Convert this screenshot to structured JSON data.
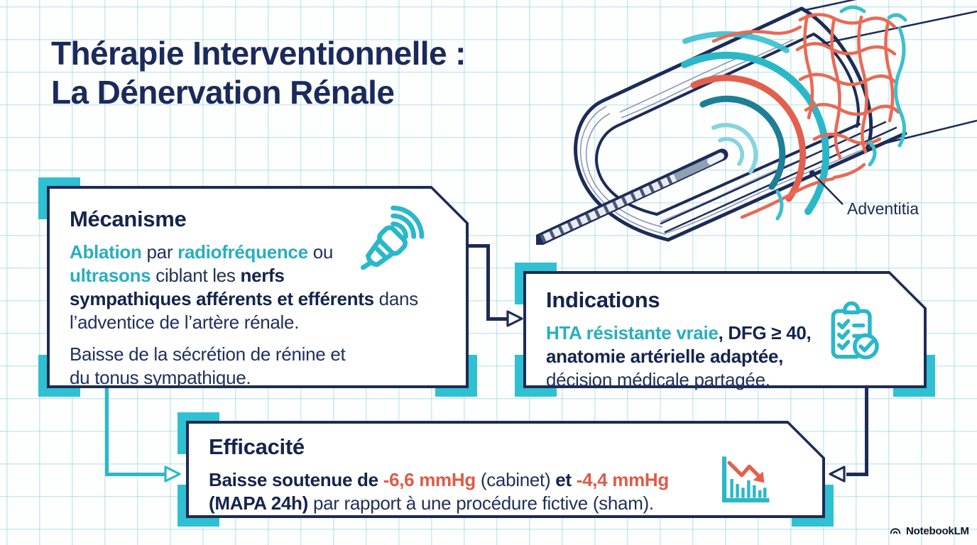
{
  "page": {
    "title_line1": "Thérapie Interventionnelle :",
    "title_line2": "La Dénervation Rénale",
    "brand": "NotebookLM"
  },
  "colors": {
    "navy": "#1d2b56",
    "navy_text": "#15244d",
    "teal": "#2ab8c9",
    "teal_text": "#29aebf",
    "coral": "#e05a47",
    "grid": "#5ec1d5",
    "dark_teal_wave": "#1e7e95",
    "light_teal_wave": "#86d4dd"
  },
  "illustration": {
    "label": "Adventitia",
    "description_icons": [
      "renal-artery-cutaway",
      "ablation-catheter",
      "energy-waves",
      "nerve-mesh"
    ]
  },
  "panels": {
    "mecanisme": {
      "heading": "Mécanisme",
      "icon": "ultrasound-probe-icon",
      "para1": [
        {
          "t": "Ablation",
          "s": "teal-bold"
        },
        {
          "t": " par ",
          "s": "plain"
        },
        {
          "t": "radiofréquence",
          "s": "teal-bold"
        },
        {
          "t": " ou\n",
          "s": "plain"
        },
        {
          "t": "ultrasons",
          "s": "teal-bold"
        },
        {
          "t": " ciblant les ",
          "s": "plain"
        },
        {
          "t": "nerfs\nsympathiques afférents et efférents",
          "s": "navy-bold"
        },
        {
          "t": " dans\nl’adventice de l’artère rénale.",
          "s": "plain"
        }
      ],
      "para2": [
        {
          "t": "Baisse de la sécrétion de rénine et\ndu tonus sympathique.",
          "s": "plain"
        }
      ]
    },
    "indications": {
      "heading": "Indications",
      "icon": "checklist-icon",
      "para1": [
        {
          "t": "HTA résistante vraie",
          "s": "teal-bold"
        },
        {
          "t": ", ",
          "s": "navy-bold"
        },
        {
          "t": "DFG ≥ 40,",
          "s": "navy-bold"
        },
        {
          "t": "\n",
          "s": "plain"
        },
        {
          "t": "anatomie artérielle adaptée,",
          "s": "navy-bold"
        },
        {
          "t": "\n",
          "s": "plain"
        },
        {
          "t": "décision médicale partagée.",
          "s": "plain"
        }
      ]
    },
    "efficacite": {
      "heading": "Efficacité",
      "icon": "declining-bar-chart-icon",
      "para1": [
        {
          "t": "Baisse soutenue de ",
          "s": "navy-bold"
        },
        {
          "t": "-6,6 mmHg",
          "s": "coral-bold"
        },
        {
          "t": " (cabinet) ",
          "s": "plain"
        },
        {
          "t": "et",
          "s": "navy-bold"
        },
        {
          "t": " ",
          "s": "plain"
        },
        {
          "t": "-4,4 mmHg",
          "s": "coral-bold"
        },
        {
          "t": "\n",
          "s": "plain"
        },
        {
          "t": "(MAPA 24h)",
          "s": "navy-bold"
        },
        {
          "t": " par rapport à une procédure fictive (sham).",
          "s": "plain"
        }
      ]
    }
  }
}
